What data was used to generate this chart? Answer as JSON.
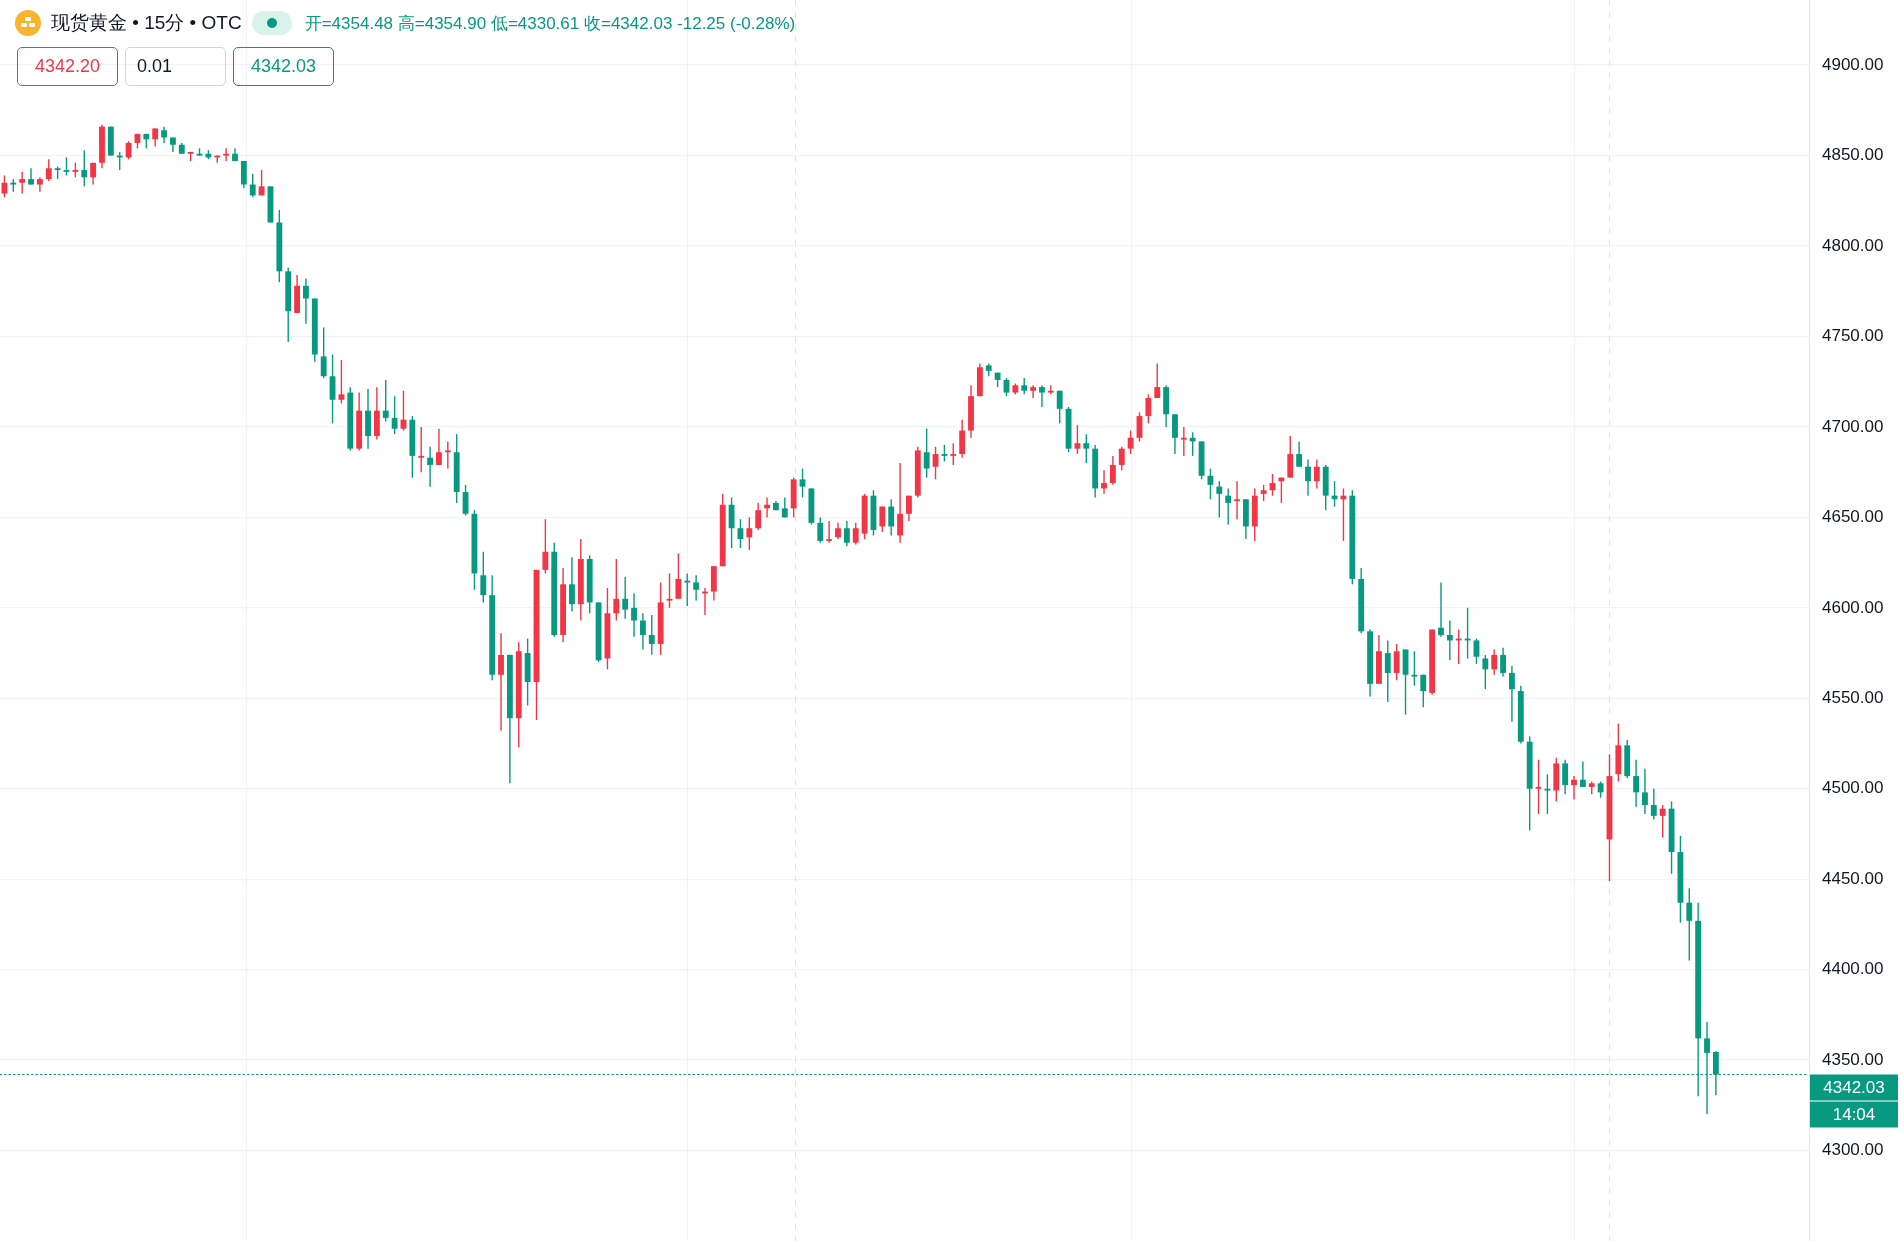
{
  "chart_data": {
    "type": "candlestick",
    "title": "现货黄金 • 15分 • OTC",
    "subtitle": "开=4354.48 高=4354.90 低=4330.61 收=4342.03 -12.25 (-0.28%)",
    "categories": [
      null,
      null,
      null,
      null,
      null,
      null,
      null,
      null,
      null,
      null,
      null,
      null,
      null,
      null,
      null,
      null,
      null,
      null,
      null,
      null,
      null,
      null,
      null,
      null,
      null,
      null,
      null,
      null,
      null,
      null,
      null,
      null,
      null,
      null,
      null,
      null,
      null,
      null,
      null,
      null,
      null,
      null,
      null,
      null,
      null,
      null,
      null,
      null,
      null,
      null,
      null,
      null,
      null,
      null,
      null,
      null,
      null,
      null,
      null,
      null,
      null,
      null,
      null,
      null,
      null,
      null,
      null,
      null,
      null,
      null,
      null,
      null,
      null,
      null,
      null,
      null,
      null,
      null,
      null,
      null,
      null,
      null,
      null,
      null,
      null,
      null,
      null,
      null,
      null,
      null,
      null,
      null,
      null,
      null,
      null,
      null,
      null,
      null,
      null,
      null,
      null,
      null,
      null,
      null,
      null,
      null,
      null,
      null,
      null,
      null,
      null,
      null,
      null,
      null,
      null,
      null,
      null,
      null,
      null,
      null,
      null,
      null,
      null,
      null,
      null,
      null,
      null,
      null,
      null,
      null,
      null,
      null,
      null,
      null,
      null,
      null,
      null,
      null,
      null,
      null,
      null,
      null,
      null,
      null,
      null,
      null,
      null,
      null,
      null,
      null,
      null,
      null,
      null,
      null,
      null,
      null,
      null,
      null,
      null,
      null,
      null,
      null,
      null,
      null,
      null,
      null,
      null,
      null,
      null,
      null,
      null,
      null,
      null,
      null,
      null,
      null,
      null,
      null,
      null,
      null,
      null,
      null,
      null,
      null,
      null,
      null,
      null,
      null,
      null,
      null,
      null,
      null,
      null,
      null,
      null,
      null,
      null,
      null,
      null,
      null,
      null,
      null,
      null,
      null
    ],
    "ohlc": [
      [
        4829,
        4839,
        4827,
        4835
      ],
      [
        4835,
        4837,
        4830,
        4834
      ],
      [
        4835,
        4841,
        4829,
        4837
      ],
      [
        4837,
        4843,
        4834,
        4834
      ],
      [
        4834,
        4838,
        4830,
        4837
      ],
      [
        4837,
        4848,
        4836,
        4843
      ],
      [
        4843,
        4844,
        4837,
        4842
      ],
      [
        4842,
        4849,
        4839,
        4841
      ],
      [
        4841,
        4846,
        4838,
        4842
      ],
      [
        4842,
        4853,
        4833,
        4838
      ],
      [
        4838,
        4846,
        4834,
        4846
      ],
      [
        4846,
        4867,
        4843,
        4866
      ],
      [
        4866,
        4866,
        4850,
        4850
      ],
      [
        4850,
        4852,
        4842,
        4849
      ],
      [
        4849,
        4858,
        4848,
        4857
      ],
      [
        4857,
        4862,
        4854,
        4862
      ],
      [
        4862,
        4862,
        4854,
        4859
      ],
      [
        4859,
        4865,
        4855,
        4865
      ],
      [
        4864,
        4866,
        4857,
        4860
      ],
      [
        4860,
        4860,
        4852,
        4856
      ],
      [
        4856,
        4857,
        4851,
        4851
      ],
      [
        4851,
        4852,
        4847,
        4852
      ],
      [
        4851,
        4854,
        4850,
        4850
      ],
      [
        4851,
        4853,
        4848,
        4849
      ],
      [
        4849,
        4850,
        4846,
        4850
      ],
      [
        4850,
        4854,
        4847,
        4851
      ],
      [
        4851,
        4854,
        4847,
        4847
      ],
      [
        4847,
        4847,
        4832,
        4834
      ],
      [
        4834,
        4840,
        4827,
        4828
      ],
      [
        4828,
        4842,
        4828,
        4833
      ],
      [
        4833,
        4833,
        4813,
        4813
      ],
      [
        4813,
        4820,
        4780,
        4786
      ],
      [
        4786,
        4788,
        4747,
        4764
      ],
      [
        4763,
        4784,
        4763,
        4778
      ],
      [
        4778,
        4782,
        4757,
        4771
      ],
      [
        4771,
        4771,
        4736,
        4740
      ],
      [
        4739,
        4755,
        4727,
        4728
      ],
      [
        4728,
        4740,
        4702,
        4715
      ],
      [
        4715,
        4737,
        4713,
        4718
      ],
      [
        4719,
        4722,
        4687,
        4688
      ],
      [
        4688,
        4719,
        4687,
        4709
      ],
      [
        4709,
        4721,
        4688,
        4695
      ],
      [
        4695,
        4722,
        4693,
        4709
      ],
      [
        4709,
        4726,
        4703,
        4705
      ],
      [
        4705,
        4717,
        4696,
        4699
      ],
      [
        4699,
        4720,
        4698,
        4704
      ],
      [
        4704,
        4706,
        4672,
        4684
      ],
      [
        4683,
        4700,
        4675,
        4684
      ],
      [
        4683,
        4689,
        4667,
        4679
      ],
      [
        4679,
        4699,
        4679,
        4686
      ],
      [
        4686,
        4692,
        4677,
        4687
      ],
      [
        4686,
        4696,
        4658,
        4664
      ],
      [
        4664,
        4668,
        4651,
        4652
      ],
      [
        4652,
        4654,
        4610,
        4619
      ],
      [
        4618,
        4631,
        4603,
        4607
      ],
      [
        4607,
        4618,
        4560,
        4563
      ],
      [
        4563,
        4586,
        4532,
        4574
      ],
      [
        4574,
        4574,
        4503,
        4539
      ],
      [
        4539,
        4581,
        4523,
        4576
      ],
      [
        4575,
        4583,
        4546,
        4559
      ],
      [
        4559,
        4621,
        4538,
        4621
      ],
      [
        4621,
        4649,
        4619,
        4631
      ],
      [
        4631,
        4636,
        4584,
        4585
      ],
      [
        4585,
        4622,
        4581,
        4613
      ],
      [
        4613,
        4628,
        4598,
        4602
      ],
      [
        4602,
        4638,
        4593,
        4627
      ],
      [
        4627,
        4629,
        4597,
        4603
      ],
      [
        4603,
        4603,
        4570,
        4571
      ],
      [
        4572,
        4611,
        4566,
        4597
      ],
      [
        4597,
        4627,
        4593,
        4605
      ],
      [
        4605,
        4617,
        4594,
        4599
      ],
      [
        4600,
        4608,
        4584,
        4593
      ],
      [
        4593,
        4597,
        4577,
        4585
      ],
      [
        4585,
        4596,
        4574,
        4580
      ],
      [
        4580,
        4614,
        4574,
        4603
      ],
      [
        4604,
        4619,
        4600,
        4605
      ],
      [
        4605,
        4630,
        4605,
        4616
      ],
      [
        4615,
        4619,
        4601,
        4614
      ],
      [
        4614,
        4618,
        4604,
        4610
      ],
      [
        4608,
        4611,
        4596,
        4609
      ],
      [
        4609,
        4623,
        4604,
        4623
      ],
      [
        4623,
        4663,
        4623,
        4657
      ],
      [
        4657,
        4661,
        4633,
        4644
      ],
      [
        4644,
        4649,
        4633,
        4638
      ],
      [
        4639,
        4650,
        4632,
        4644
      ],
      [
        4644,
        4658,
        4643,
        4654
      ],
      [
        4655,
        4661,
        4650,
        4657
      ],
      [
        4658,
        4659,
        4654,
        4654
      ],
      [
        4655,
        4661,
        4650,
        4650
      ],
      [
        4655,
        4672,
        4650,
        4671
      ],
      [
        4671,
        4677,
        4661,
        4667
      ],
      [
        4666,
        4666,
        4646,
        4647
      ],
      [
        4647,
        4650,
        4636,
        4637
      ],
      [
        4637,
        4648,
        4636,
        4638
      ],
      [
        4639,
        4647,
        4638,
        4644
      ],
      [
        4644,
        4648,
        4634,
        4636
      ],
      [
        4636,
        4647,
        4635,
        4644
      ],
      [
        4641,
        4663,
        4638,
        4662
      ],
      [
        4662,
        4665,
        4640,
        4643
      ],
      [
        4645,
        4656,
        4642,
        4656
      ],
      [
        4656,
        4660,
        4640,
        4645
      ],
      [
        4640,
        4680,
        4636,
        4652
      ],
      [
        4652,
        4662,
        4648,
        4662
      ],
      [
        4662,
        4689,
        4661,
        4687
      ],
      [
        4686,
        4699,
        4672,
        4677
      ],
      [
        4678,
        4689,
        4671,
        4685
      ],
      [
        4685,
        4690,
        4681,
        4684
      ],
      [
        4684,
        4691,
        4679,
        4685
      ],
      [
        4685,
        4704,
        4683,
        4698
      ],
      [
        4698,
        4723,
        4694,
        4717
      ],
      [
        4717,
        4735,
        4717,
        4733
      ],
      [
        4734,
        4735,
        4728,
        4731
      ],
      [
        4730,
        4730,
        4722,
        4726
      ],
      [
        4726,
        4727,
        4717,
        4719
      ],
      [
        4719,
        4724,
        4718,
        4723
      ],
      [
        4723,
        4727,
        4718,
        4720
      ],
      [
        4720,
        4723,
        4716,
        4722
      ],
      [
        4722,
        4723,
        4711,
        4719
      ],
      [
        4719,
        4723,
        4718,
        4720
      ],
      [
        4720,
        4720,
        4702,
        4710
      ],
      [
        4710,
        4711,
        4686,
        4688
      ],
      [
        4688,
        4701,
        4685,
        4691
      ],
      [
        4691,
        4696,
        4680,
        4688
      ],
      [
        4688,
        4690,
        4661,
        4666
      ],
      [
        4666,
        4676,
        4663,
        4669
      ],
      [
        4669,
        4684,
        4668,
        4679
      ],
      [
        4679,
        4689,
        4676,
        4688
      ],
      [
        4688,
        4698,
        4685,
        4694
      ],
      [
        4694,
        4708,
        4692,
        4706
      ],
      [
        4706,
        4718,
        4702,
        4716
      ],
      [
        4716,
        4735,
        4716,
        4722
      ],
      [
        4722,
        4723,
        4700,
        4707
      ],
      [
        4707,
        4707,
        4685,
        4694
      ],
      [
        4693,
        4700,
        4684,
        4694
      ],
      [
        4694,
        4697,
        4684,
        4692
      ],
      [
        4692,
        4692,
        4671,
        4673
      ],
      [
        4673,
        4677,
        4660,
        4668
      ],
      [
        4667,
        4670,
        4650,
        4663
      ],
      [
        4662,
        4666,
        4646,
        4658
      ],
      [
        4659,
        4670,
        4649,
        4660
      ],
      [
        4660,
        4660,
        4638,
        4645
      ],
      [
        4645,
        4666,
        4637,
        4662
      ],
      [
        4663,
        4668,
        4659,
        4665
      ],
      [
        4665,
        4674,
        4662,
        4669
      ],
      [
        4670,
        4672,
        4658,
        4672
      ],
      [
        4672,
        4695,
        4672,
        4685
      ],
      [
        4685,
        4692,
        4678,
        4678
      ],
      [
        4678,
        4682,
        4662,
        4670
      ],
      [
        4670,
        4682,
        4666,
        4678
      ],
      [
        4678,
        4679,
        4654,
        4662
      ],
      [
        4662,
        4670,
        4656,
        4660
      ],
      [
        4660,
        4666,
        4637,
        4662
      ],
      [
        4662,
        4665,
        4613,
        4616
      ],
      [
        4616,
        4622,
        4586,
        4587
      ],
      [
        4587,
        4588,
        4551,
        4558
      ],
      [
        4558,
        4585,
        4558,
        4576
      ],
      [
        4575,
        4582,
        4548,
        4564
      ],
      [
        4564,
        4580,
        4560,
        4576
      ],
      [
        4577,
        4577,
        4541,
        4563
      ],
      [
        4563,
        4576,
        4557,
        4562
      ],
      [
        4563,
        4563,
        4545,
        4554
      ],
      [
        4553,
        4588,
        4552,
        4588
      ],
      [
        4589,
        4614,
        4584,
        4585
      ],
      [
        4585,
        4593,
        4571,
        4582
      ],
      [
        4582,
        4588,
        4569,
        4583
      ],
      [
        4583,
        4600,
        4572,
        4582
      ],
      [
        4582,
        4583,
        4569,
        4573
      ],
      [
        4572,
        4574,
        4555,
        4566
      ],
      [
        4566,
        4577,
        4563,
        4574
      ],
      [
        4574,
        4578,
        4562,
        4564
      ],
      [
        4564,
        4568,
        4537,
        4555
      ],
      [
        4554,
        4557,
        4525,
        4526
      ],
      [
        4526,
        4529,
        4477,
        4500
      ],
      [
        4500,
        4516,
        4486,
        4501
      ],
      [
        4500,
        4508,
        4486,
        4499
      ],
      [
        4499,
        4517,
        4493,
        4514
      ],
      [
        4514,
        4516,
        4497,
        4502
      ],
      [
        4502,
        4507,
        4494,
        4505
      ],
      [
        4505,
        4515,
        4501,
        4501
      ],
      [
        4501,
        4504,
        4497,
        4503
      ],
      [
        4503,
        4504,
        4495,
        4498
      ],
      [
        4472,
        4519,
        4449,
        4507
      ],
      [
        4508,
        4536,
        4504,
        4524
      ],
      [
        4524,
        4527,
        4506,
        4507
      ],
      [
        4507,
        4516,
        4490,
        4498
      ],
      [
        4498,
        4511,
        4486,
        4491
      ],
      [
        4491,
        4500,
        4483,
        4485
      ],
      [
        4485,
        4491,
        4473,
        4489
      ],
      [
        4489,
        4493,
        4453,
        4465
      ],
      [
        4465,
        4474,
        4426,
        4437
      ],
      [
        4437,
        4445,
        4405,
        4427
      ],
      [
        4427,
        4437,
        4330,
        4362
      ],
      [
        4362,
        4371,
        4320,
        4354
      ],
      [
        4354.48,
        4354.9,
        4330.61,
        4342.03
      ],
      null,
      null,
      null,
      null,
      null,
      null,
      null,
      null,
      null,
      null
    ],
    "colors": [
      "#f23645",
      "#089981",
      "#f23645",
      "#089981",
      "#f23645",
      "#f23645",
      "#089981",
      "#089981",
      "#f23645",
      "#089981",
      "#f23645",
      "#f23645",
      "#089981",
      "#089981",
      "#f23645",
      "#f23645",
      "#089981",
      "#f23645",
      "#089981",
      "#089981",
      "#089981",
      "#f23645",
      "#089981",
      "#089981",
      "#f23645",
      "#f23645",
      "#089981",
      "#089981",
      "#089981",
      "#f23645",
      "#089981",
      "#089981",
      "#089981",
      "#f23645",
      "#089981",
      "#089981",
      "#089981",
      "#089981",
      "#f23645",
      "#089981",
      "#f23645",
      "#089981",
      "#f23645",
      "#089981",
      "#089981",
      "#f23645",
      "#089981",
      "#f23645",
      "#089981",
      "#f23645",
      "#f23645",
      "#089981",
      "#089981",
      "#089981",
      "#089981",
      "#089981",
      "#f23645",
      "#089981",
      "#f23645",
      "#089981",
      "#f23645",
      "#f23645",
      "#089981",
      "#f23645",
      "#089981",
      "#f23645",
      "#089981",
      "#089981",
      "#f23645",
      "#f23645",
      "#089981",
      "#089981",
      "#089981",
      "#089981",
      "#f23645",
      "#f23645",
      "#f23645",
      "#089981",
      "#089981",
      "#f23645",
      "#f23645",
      "#f23645",
      "#089981",
      "#089981",
      "#f23645",
      "#f23645",
      "#f23645",
      "#089981",
      "#089981",
      "#f23645",
      "#089981",
      "#089981",
      "#089981",
      "#f23645",
      "#f23645",
      "#089981",
      "#f23645",
      "#f23645",
      "#089981",
      "#f23645",
      "#089981",
      "#f23645",
      "#f23645",
      "#f23645",
      "#089981",
      "#f23645",
      "#089981",
      "#f23645",
      "#f23645",
      "#f23645",
      "#f23645",
      "#089981",
      "#089981",
      "#089981",
      "#f23645",
      "#089981",
      "#f23645",
      "#089981",
      "#f23645",
      "#089981",
      "#089981",
      "#f23645",
      "#089981",
      "#089981",
      "#f23645",
      "#f23645",
      "#f23645",
      "#f23645",
      "#f23645",
      "#f23645",
      "#f23645",
      "#089981",
      "#089981",
      "#f23645",
      "#089981",
      "#089981",
      "#089981",
      "#089981",
      "#089981",
      "#f23645",
      "#089981",
      "#f23645",
      "#f23645",
      "#f23645",
      "#f23645",
      "#f23645",
      "#089981",
      "#089981",
      "#f23645",
      "#089981",
      "#089981",
      "#f23645",
      "#089981",
      "#089981",
      "#089981",
      "#f23645",
      "#089981",
      "#f23645",
      "#089981",
      "#089981",
      "#089981",
      "#f23645",
      "#089981",
      "#089981",
      "#f23645",
      "#089981",
      "#089981",
      "#089981",
      "#f23645",
      "#089981",
      "#089981",
      "#089981",
      "#089981",
      "#f23645",
      "#089981",
      "#f23645",
      "#089981",
      "#f23645",
      "#089981",
      "#f23645",
      "#089981",
      "#f23645",
      "#f23645",
      "#089981",
      "#089981",
      "#089981",
      "#089981",
      "#f23645",
      "#089981",
      "#089981",
      "#089981",
      "#089981",
      "#089981",
      "#089981",
      null,
      null,
      null,
      null,
      null,
      null,
      null,
      null,
      null,
      null
    ],
    "ylim": [
      4250,
      4936
    ],
    "yticks": [
      {
        "value": 4300,
        "label": "4300.00"
      },
      {
        "value": 4350,
        "label": "4350.00"
      },
      {
        "value": 4400,
        "label": "4400.00"
      },
      {
        "value": 4450,
        "label": "4450.00"
      },
      {
        "value": 4500,
        "label": "4500.00"
      },
      {
        "value": 4550,
        "label": "4550.00"
      },
      {
        "value": 4600,
        "label": "4600.00"
      },
      {
        "value": 4650,
        "label": "4650.00"
      },
      {
        "value": 4700,
        "label": "4700.00"
      },
      {
        "value": 4750,
        "label": "4750.00"
      },
      {
        "value": 4800,
        "label": "4800.00"
      },
      {
        "value": 4850,
        "label": "4850.00"
      },
      {
        "value": 4900,
        "label": "4900.00"
      }
    ],
    "grid": "y",
    "tick_labels": "y",
    "ref_lines": [
      {
        "axis": "y",
        "value": 4342.03,
        "label": "4342.03",
        "color": "#089981",
        "line_style": "dotted"
      }
    ],
    "annotations": [
      "4342.20",
      "0.01",
      "4342.03",
      "14:04"
    ]
  }
}
